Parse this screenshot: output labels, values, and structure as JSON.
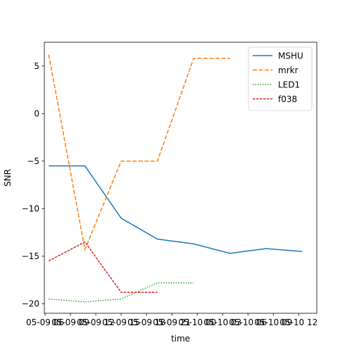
{
  "chart_data": {
    "type": "line",
    "title": "",
    "xlabel": "time",
    "ylabel": "SNR",
    "x": [
      0,
      1,
      2,
      3,
      4,
      5,
      6,
      7
    ],
    "xlim": [
      -0.12,
      7.4
    ],
    "ylim": [
      -21.0,
      7.5
    ],
    "x_ticks": [
      {
        "pos": -0.1,
        "label": "05-09 06"
      },
      {
        "pos": 0.6,
        "label": "05-09 09"
      },
      {
        "pos": 1.3,
        "label": "05-09 12"
      },
      {
        "pos": 2.0,
        "label": "05-09 15"
      },
      {
        "pos": 2.7,
        "label": "05-09 18"
      },
      {
        "pos": 3.4,
        "label": "05-09 21"
      },
      {
        "pos": 4.1,
        "label": "05-10 00"
      },
      {
        "pos": 4.8,
        "label": "05-10 03"
      },
      {
        "pos": 5.5,
        "label": "05-10 06"
      },
      {
        "pos": 6.2,
        "label": "05-10 09"
      },
      {
        "pos": 6.9,
        "label": "05-10 12"
      }
    ],
    "y_ticks": [
      5,
      0,
      -5,
      -10,
      -15,
      -20
    ],
    "grid": false,
    "legend_position": "top-right",
    "series": [
      {
        "name": "MSHU",
        "color": "#1f77b4",
        "dash": "solid",
        "values": [
          -5.5,
          -5.5,
          -11.0,
          -13.2,
          -13.7,
          -14.7,
          -14.2,
          -14.5
        ]
      },
      {
        "name": "mrkr",
        "color": "#ff7f0e",
        "dash": "dashed",
        "values": [
          6.2,
          -14.3,
          -5.0,
          -5.0,
          5.8,
          5.8,
          null,
          null
        ]
      },
      {
        "name": "LED1",
        "color": "#2ca02c",
        "dash": "dotted",
        "values": [
          -19.5,
          -19.8,
          -19.5,
          -17.8,
          -17.8,
          null,
          null,
          null
        ]
      },
      {
        "name": "f038",
        "color": "#d62728",
        "dash": "dashdot-fine",
        "values": [
          -15.5,
          -13.5,
          -18.8,
          -18.8,
          null,
          null,
          null,
          null
        ]
      }
    ]
  }
}
